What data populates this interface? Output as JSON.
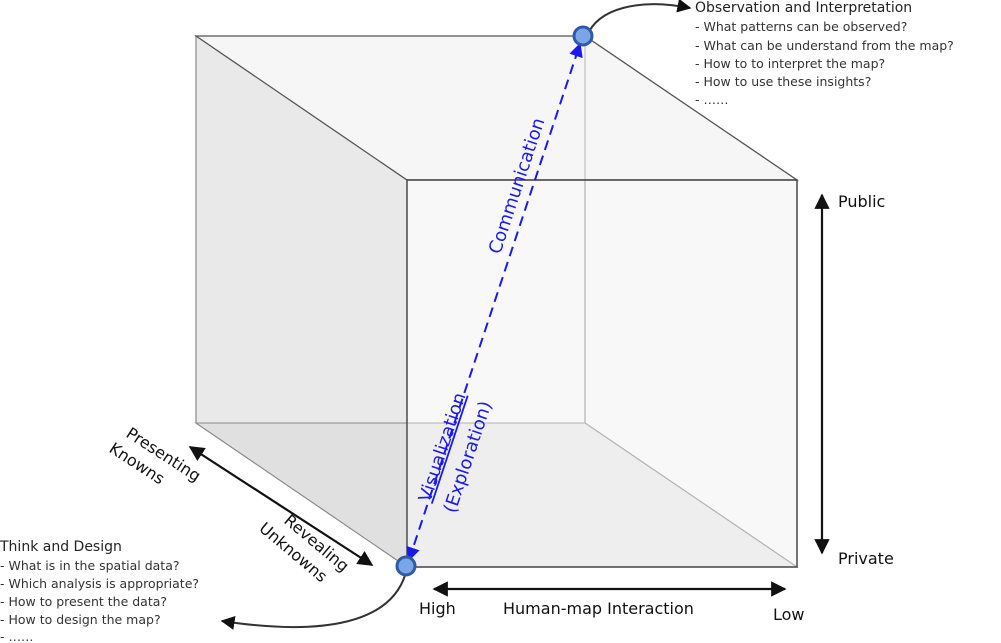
{
  "top_note": {
    "title": "Observation and Interpretation",
    "items": [
      "- What patterns can be observed?",
      "- What can be understand from the map?",
      "- How to to interpret the map?",
      "- How to use these insights?",
      "- ……"
    ]
  },
  "bottom_note": {
    "title": "Think and Design",
    "items": [
      "- What is in the spatial data?",
      "- Which analysis is appropriate?",
      "- How to present the data?",
      "- How to design the map?",
      "- ……"
    ]
  },
  "vertical_axis": {
    "top": "Public",
    "bottom": "Private"
  },
  "horizontal_axis": {
    "left": "High",
    "center": "Human-map Interaction",
    "right": "Low"
  },
  "depth_axis": {
    "far_line1": "Presenting",
    "far_line2": "Knowns",
    "near_line1": "Revealing",
    "near_line2": "Unknowns"
  },
  "diagonal": {
    "upper": "Communication",
    "lower_line1": "Visualization",
    "lower_line2": "(Exploration)"
  },
  "colors": {
    "accent": "#1a1aee",
    "node_fill": "#7aa6e8",
    "node_stroke": "#2f5aa8"
  }
}
